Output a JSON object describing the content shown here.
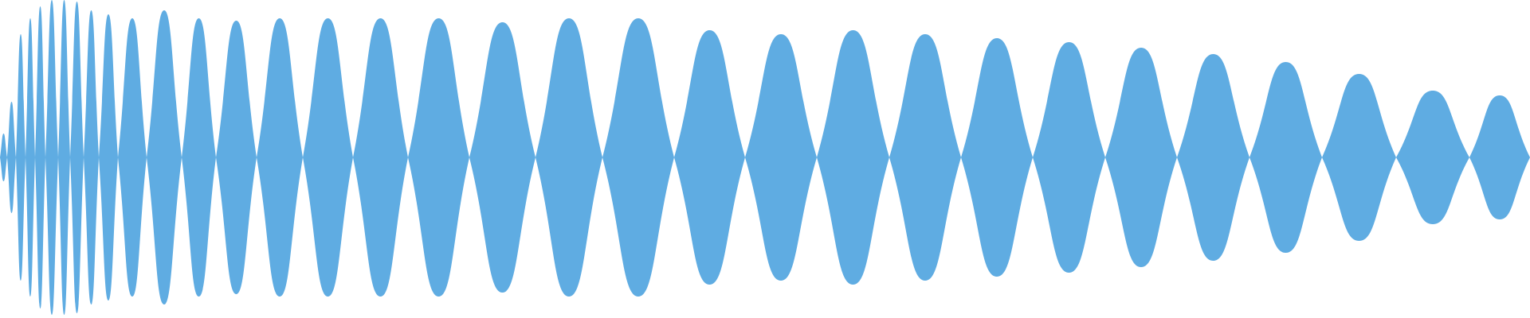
{
  "waveform": {
    "fill_color": "#5FACE2",
    "background_color": "#FFFFFF"
  }
}
